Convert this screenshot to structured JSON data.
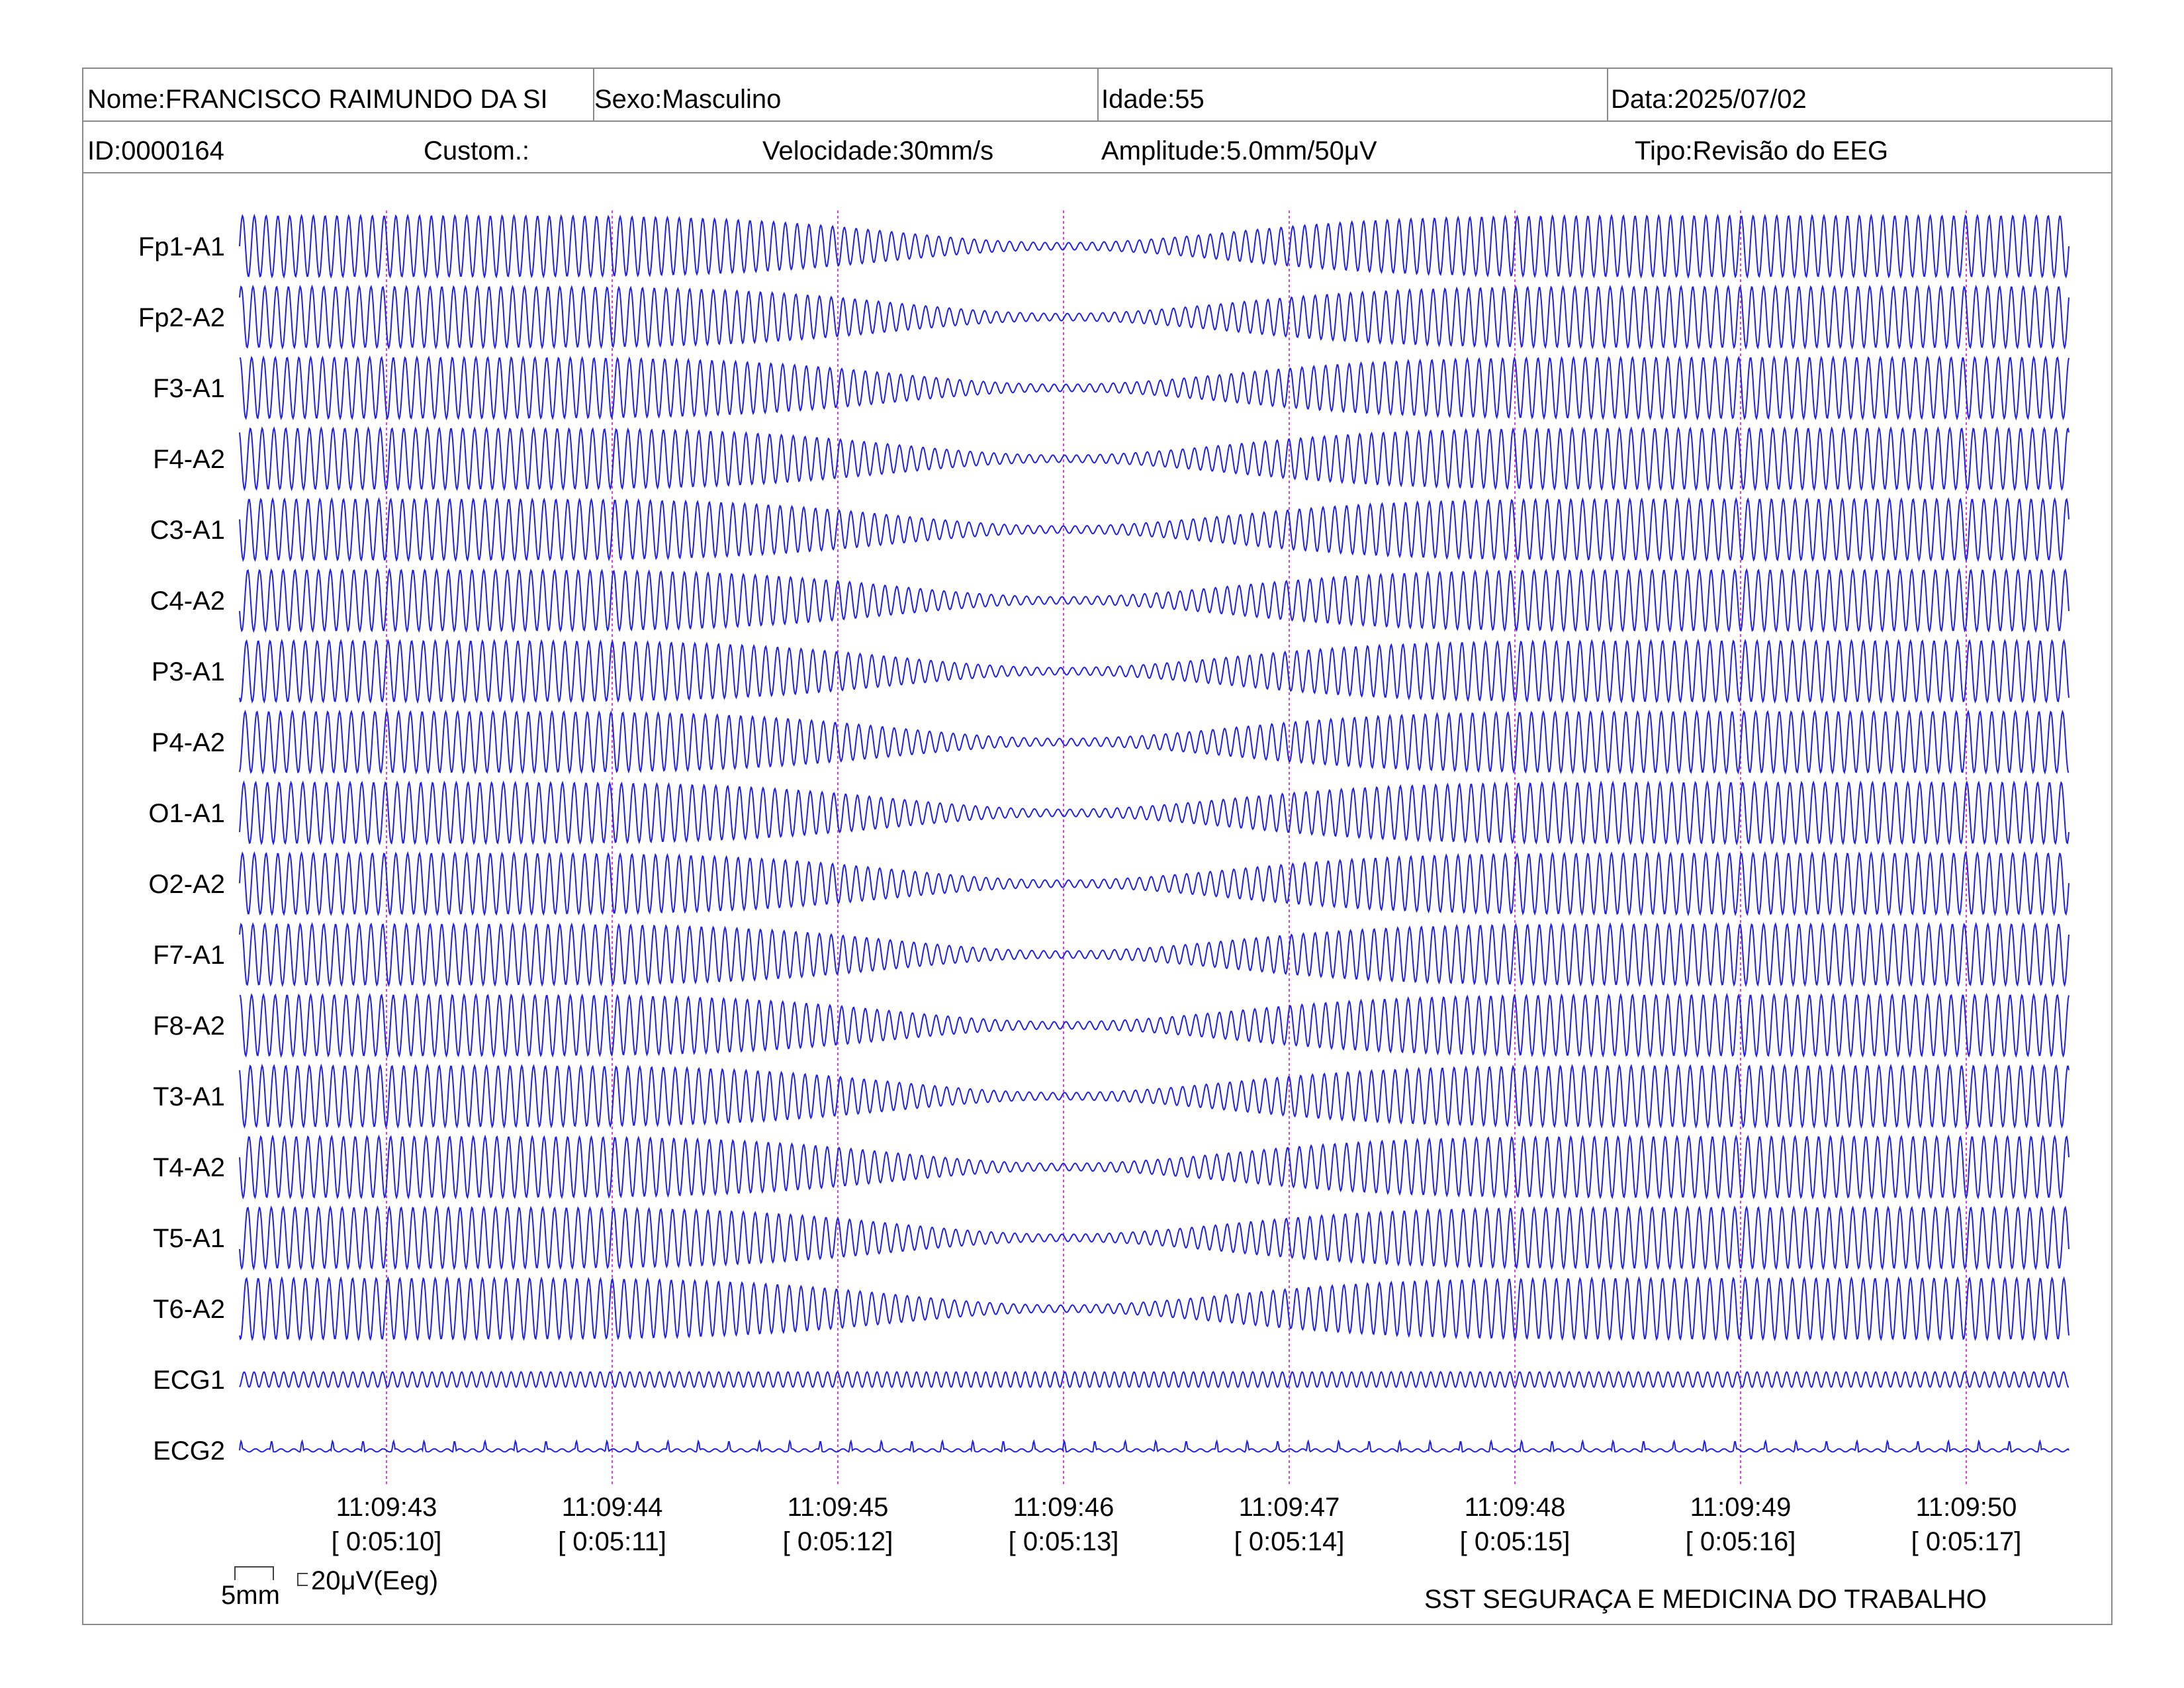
{
  "header": {
    "row1": {
      "name": "Nome:FRANCISCO RAIMUNDO DA SI",
      "sex": "Sexo:Masculino",
      "age": "Idade:55",
      "date": "Data:2025/07/02"
    },
    "row2": {
      "id": "ID:0000164",
      "custom": "Custom.:",
      "speed": "Velocidade:30mm/s",
      "amplitude": "Amplitude:5.0mm/50μV",
      "type": "Tipo:Revisão do EEG"
    }
  },
  "colors": {
    "trace": "#2020e0",
    "marker": "#e040e0",
    "border": "#8a8a8a"
  },
  "chart_data": {
    "type": "line",
    "channels": [
      {
        "name": "Fp1-A1",
        "amplitude": 1.0,
        "cycles": 155
      },
      {
        "name": "Fp2-A2",
        "amplitude": 1.0,
        "cycles": 155
      },
      {
        "name": "F3-A1",
        "amplitude": 1.0,
        "cycles": 155
      },
      {
        "name": "F4-A2",
        "amplitude": 1.0,
        "cycles": 155
      },
      {
        "name": "C3-A1",
        "amplitude": 1.0,
        "cycles": 155
      },
      {
        "name": "C4-A2",
        "amplitude": 1.0,
        "cycles": 155
      },
      {
        "name": "P3-A1",
        "amplitude": 1.0,
        "cycles": 155
      },
      {
        "name": "P4-A2",
        "amplitude": 1.0,
        "cycles": 155
      },
      {
        "name": "O1-A1",
        "amplitude": 1.0,
        "cycles": 155
      },
      {
        "name": "O2-A2",
        "amplitude": 1.0,
        "cycles": 155
      },
      {
        "name": "F7-A1",
        "amplitude": 1.0,
        "cycles": 155
      },
      {
        "name": "F8-A2",
        "amplitude": 1.0,
        "cycles": 155
      },
      {
        "name": "T3-A1",
        "amplitude": 1.0,
        "cycles": 155
      },
      {
        "name": "T4-A2",
        "amplitude": 1.0,
        "cycles": 155
      },
      {
        "name": "T5-A1",
        "amplitude": 1.0,
        "cycles": 155
      },
      {
        "name": "T6-A2",
        "amplitude": 1.0,
        "cycles": 155
      },
      {
        "name": "ECG1",
        "amplitude": 0.25,
        "cycles": 185
      },
      {
        "name": "ECG2",
        "amplitude": 0.08,
        "cycles": 60
      }
    ],
    "time_marks": [
      {
        "time": "11:09:43",
        "elapsed": "[ 0:05:10]"
      },
      {
        "time": "11:09:44",
        "elapsed": "[ 0:05:11]"
      },
      {
        "time": "11:09:45",
        "elapsed": "[ 0:05:12]"
      },
      {
        "time": "11:09:46",
        "elapsed": "[ 0:05:13]"
      },
      {
        "time": "11:09:47",
        "elapsed": "[ 0:05:14]"
      },
      {
        "time": "11:09:48",
        "elapsed": "[ 0:05:15]"
      },
      {
        "time": "11:09:49",
        "elapsed": "[ 0:05:16]"
      },
      {
        "time": "11:09:50",
        "elapsed": "[ 0:05:17]"
      }
    ]
  },
  "scale": {
    "time_label": "5mm",
    "amp_label": "20μV(Eeg)"
  },
  "footer": {
    "company": "SST SEGURAÇA E MEDICINA DO TRABALHO"
  }
}
